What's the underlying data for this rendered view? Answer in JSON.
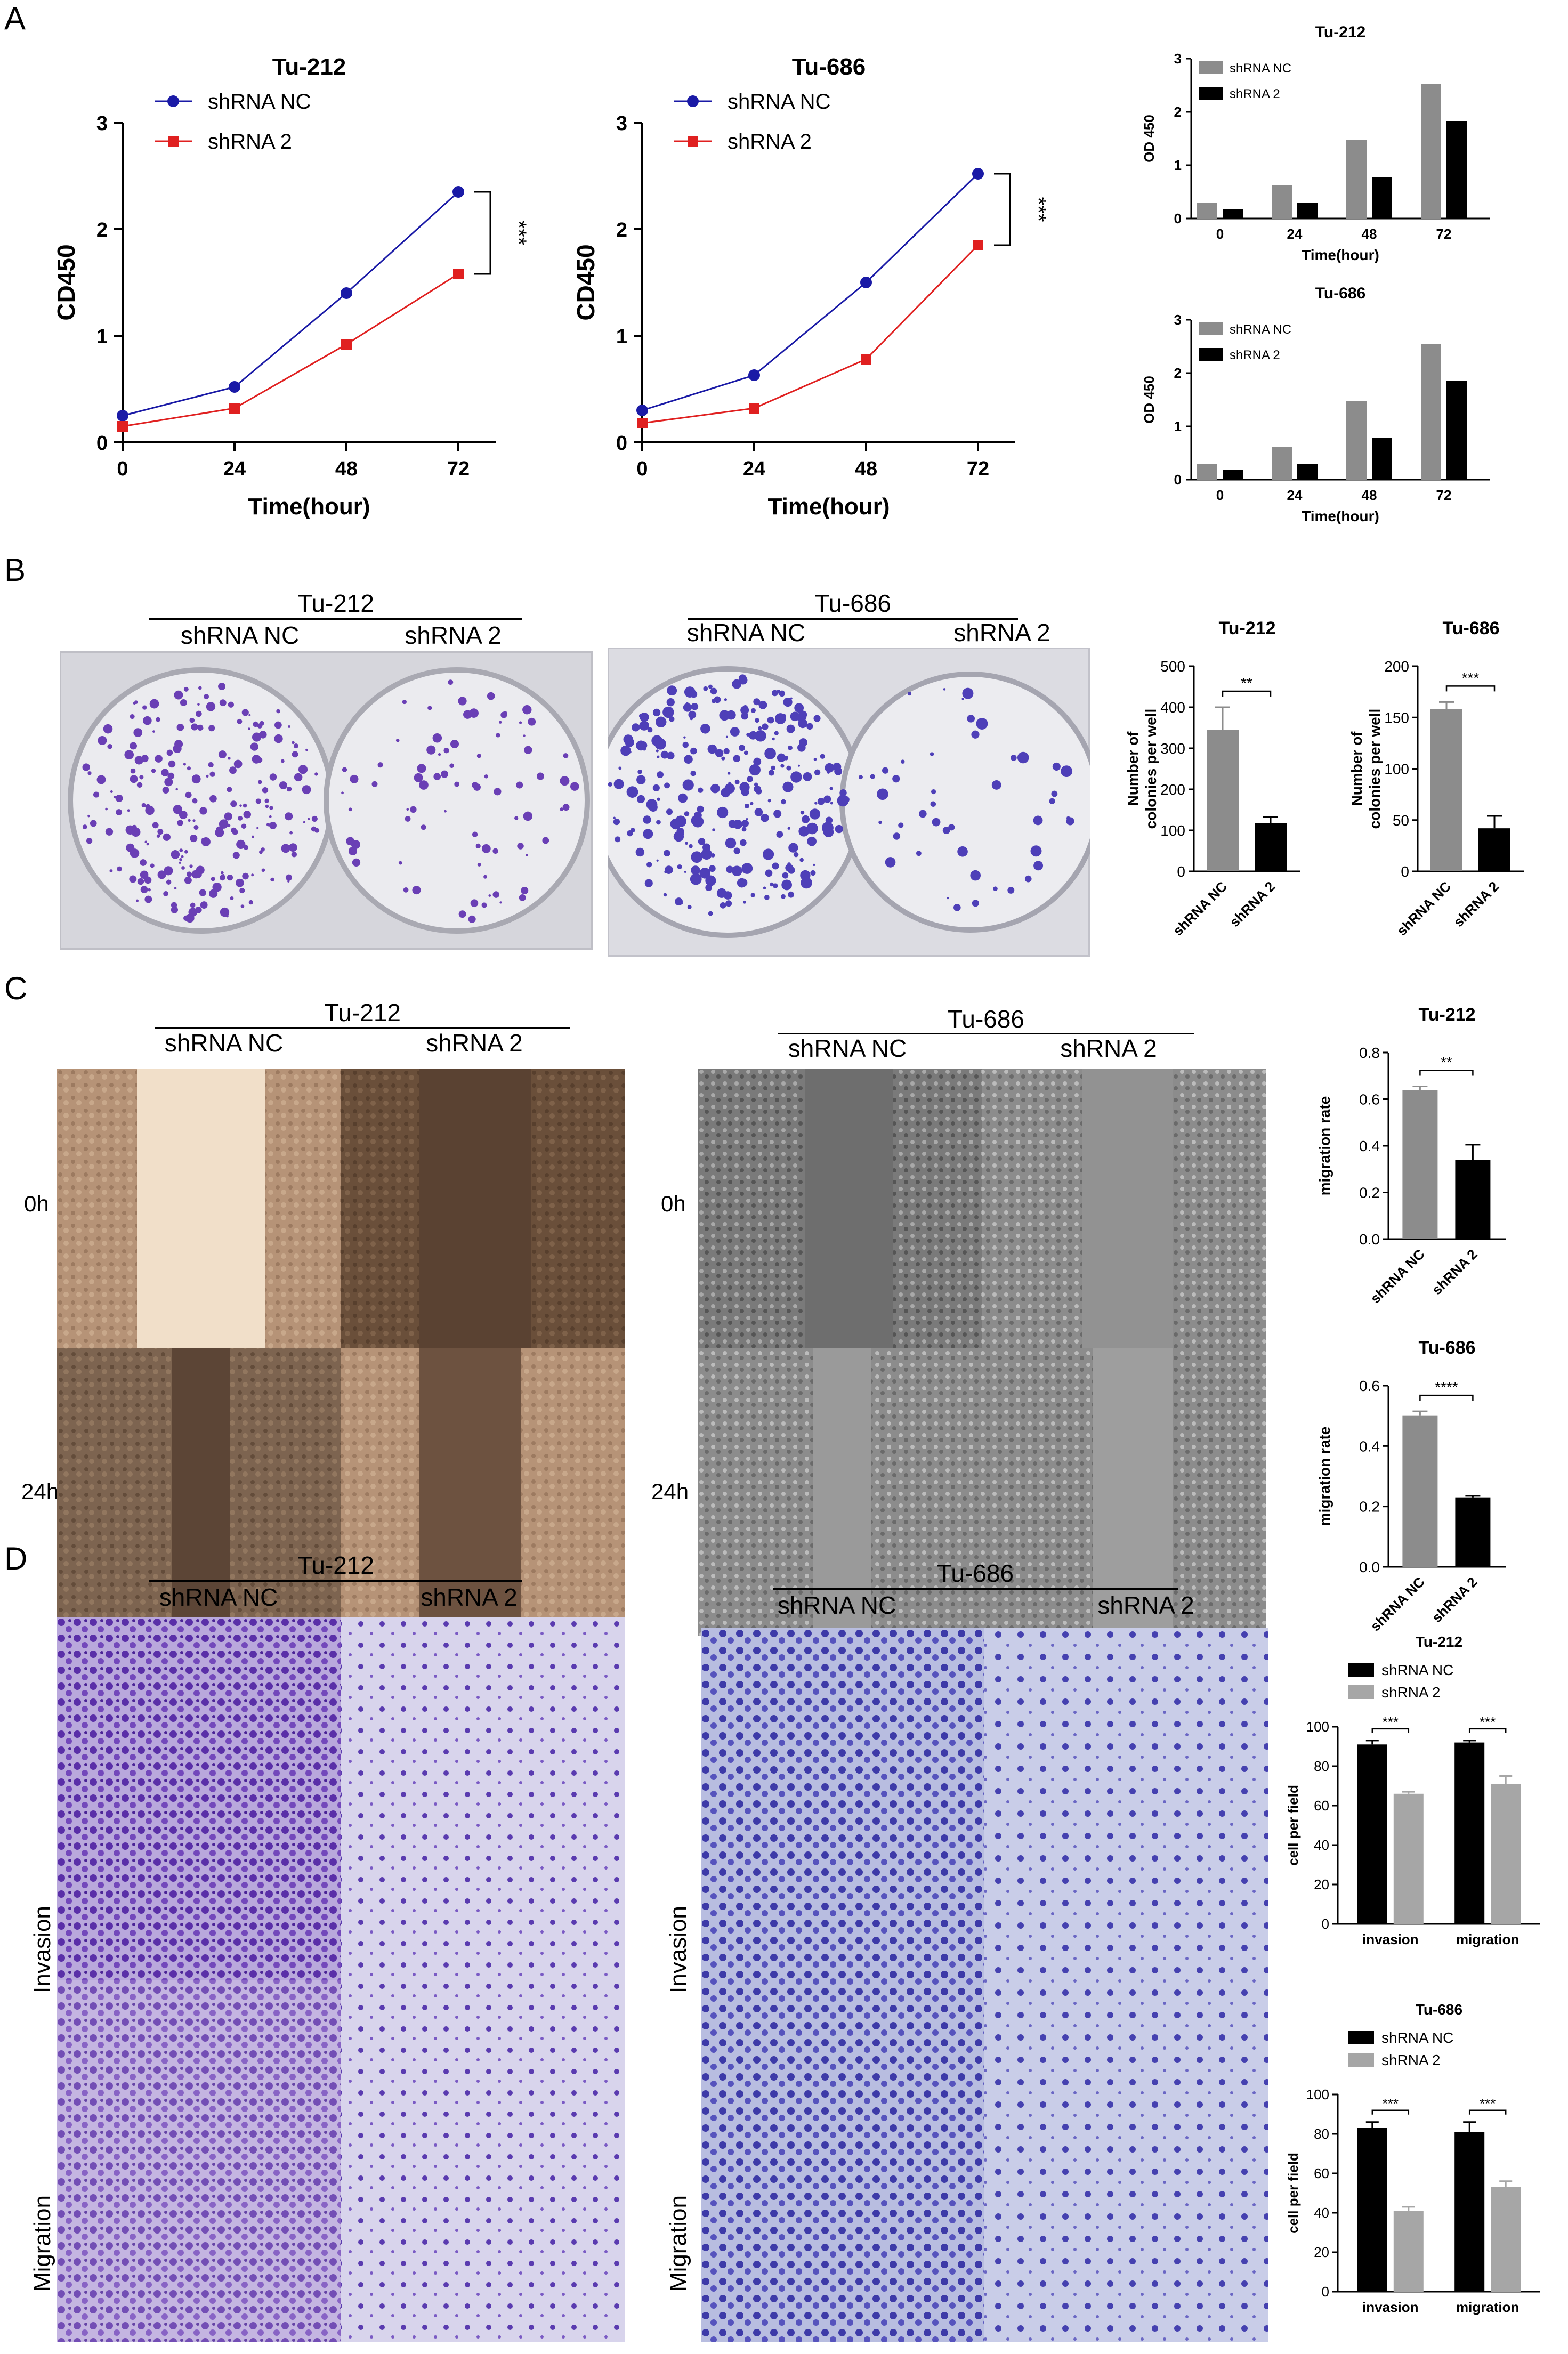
{
  "panels": {
    "A": "A",
    "B": "B",
    "C": "C",
    "D": "D"
  },
  "labels": {
    "tu212": "Tu-212",
    "tu686": "Tu-686",
    "shrna_nc": "shRNA NC",
    "shrna_2": "shRNA 2",
    "h0": "0h",
    "h24": "24h",
    "invasion": "Invasion",
    "migration": "Migration"
  },
  "colors": {
    "nc_line": "#1a1aa6",
    "sh2_line": "#e02020",
    "bar_gray": "#8c8c8c",
    "bar_black": "#000000",
    "bar_lightgray": "#a6a6a6",
    "stain_purple": "#6a3fb5",
    "plate_bg": "#d9d9de"
  },
  "chart_data": [
    {
      "id": "A-line-tu212",
      "type": "line",
      "title": "Tu-212",
      "xlabel": "Time(hour)",
      "ylabel": "CD450",
      "x": [
        0,
        24,
        48,
        72
      ],
      "xlim": [
        0,
        80
      ],
      "ylim": [
        0,
        3
      ],
      "yticks": [
        0,
        1,
        2,
        3
      ],
      "series": [
        {
          "name": "shRNA NC",
          "values": [
            0.25,
            0.52,
            1.4,
            2.35
          ]
        },
        {
          "name": "shRNA 2",
          "values": [
            0.15,
            0.32,
            0.92,
            1.58
          ]
        }
      ],
      "significance": "***",
      "legend": "top-left"
    },
    {
      "id": "A-line-tu686",
      "type": "line",
      "title": "Tu-686",
      "xlabel": "Time(hour)",
      "ylabel": "CD450",
      "x": [
        0,
        24,
        48,
        72
      ],
      "xlim": [
        0,
        80
      ],
      "ylim": [
        0,
        3
      ],
      "yticks": [
        0,
        1,
        2,
        3
      ],
      "series": [
        {
          "name": "shRNA NC",
          "values": [
            0.3,
            0.63,
            1.5,
            2.52
          ]
        },
        {
          "name": "shRNA 2",
          "values": [
            0.18,
            0.32,
            0.78,
            1.85
          ]
        }
      ],
      "significance": "***",
      "legend": "top-left"
    },
    {
      "id": "A-bar-tu212",
      "type": "bar",
      "title": "Tu-212",
      "xlabel": "Time(hour)",
      "ylabel": "OD 450",
      "categories": [
        "0",
        "24",
        "48",
        "72"
      ],
      "ylim": [
        0,
        3
      ],
      "yticks": [
        0,
        1,
        2,
        3
      ],
      "series": [
        {
          "name": "shRNA NC",
          "values": [
            0.3,
            0.62,
            1.48,
            2.52
          ]
        },
        {
          "name": "shRNA 2",
          "values": [
            0.18,
            0.3,
            0.78,
            1.83
          ]
        }
      ],
      "legend": "top-left"
    },
    {
      "id": "A-bar-tu686",
      "type": "bar",
      "title": "Tu-686",
      "xlabel": "Time(hour)",
      "ylabel": "OD 450",
      "categories": [
        "0",
        "24",
        "48",
        "72"
      ],
      "ylim": [
        0,
        3
      ],
      "yticks": [
        0,
        1,
        2,
        3
      ],
      "series": [
        {
          "name": "shRNA NC",
          "values": [
            0.3,
            0.62,
            1.48,
            2.55
          ]
        },
        {
          "name": "shRNA 2",
          "values": [
            0.18,
            0.3,
            0.78,
            1.85
          ]
        }
      ],
      "legend": "top-left"
    },
    {
      "id": "B-bar-tu212",
      "type": "bar",
      "title": "Tu-212",
      "ylabel": "Number of colonies per well",
      "categories": [
        "shRNA NC",
        "shRNA 2"
      ],
      "values": [
        345,
        118
      ],
      "errors": [
        55,
        15
      ],
      "ylim": [
        0,
        500
      ],
      "yticks": [
        0,
        100,
        200,
        300,
        400,
        500
      ],
      "significance": "**"
    },
    {
      "id": "B-bar-tu686",
      "type": "bar",
      "title": "Tu-686",
      "ylabel": "Number of colonies per well",
      "categories": [
        "shRNA NC",
        "shRNA 2"
      ],
      "values": [
        158,
        42
      ],
      "errors": [
        7,
        12
      ],
      "ylim": [
        0,
        200
      ],
      "yticks": [
        0,
        50,
        100,
        150,
        200
      ],
      "significance": "***"
    },
    {
      "id": "C-bar-tu212",
      "type": "bar",
      "title": "Tu-212",
      "ylabel": "migration rate",
      "categories": [
        "shRNA NC",
        "shRNA 2"
      ],
      "values": [
        0.64,
        0.34
      ],
      "errors": [
        0.015,
        0.065
      ],
      "ylim": [
        0,
        0.8
      ],
      "yticks": [
        "0.0",
        "0.2",
        "0.4",
        "0.6",
        "0.8"
      ],
      "significance": "**"
    },
    {
      "id": "C-bar-tu686",
      "type": "bar",
      "title": "Tu-686",
      "ylabel": "migration rate",
      "categories": [
        "shRNA NC",
        "shRNA 2"
      ],
      "values": [
        0.5,
        0.23
      ],
      "errors": [
        0.015,
        0.005
      ],
      "ylim": [
        0,
        0.6
      ],
      "yticks": [
        "0.0",
        "0.2",
        "0.4",
        "0.6"
      ],
      "significance": "****"
    },
    {
      "id": "D-bar-tu212",
      "type": "bar",
      "title": "Tu-212",
      "ylabel": "cell per field",
      "categories": [
        "invasion",
        "migration"
      ],
      "series": [
        {
          "name": "shRNA NC",
          "values": [
            91,
            92
          ],
          "errors": [
            2,
            1
          ]
        },
        {
          "name": "shRNA 2",
          "values": [
            66,
            71
          ],
          "errors": [
            1,
            4
          ]
        }
      ],
      "ylim": [
        0,
        100
      ],
      "yticks": [
        0,
        20,
        40,
        60,
        80,
        100
      ],
      "significance": [
        "***",
        "***"
      ],
      "legend": "top-left"
    },
    {
      "id": "D-bar-tu686",
      "type": "bar",
      "title": "Tu-686",
      "ylabel": "cell per field",
      "categories": [
        "invasion",
        "migration"
      ],
      "series": [
        {
          "name": "shRNA NC",
          "values": [
            83,
            81
          ],
          "errors": [
            3,
            5
          ]
        },
        {
          "name": "shRNA 2",
          "values": [
            41,
            53
          ],
          "errors": [
            2,
            3
          ]
        }
      ],
      "ylim": [
        0,
        100
      ],
      "yticks": [
        0,
        20,
        40,
        60,
        80,
        100
      ],
      "significance": [
        "***",
        "***"
      ],
      "legend": "top-left"
    }
  ]
}
